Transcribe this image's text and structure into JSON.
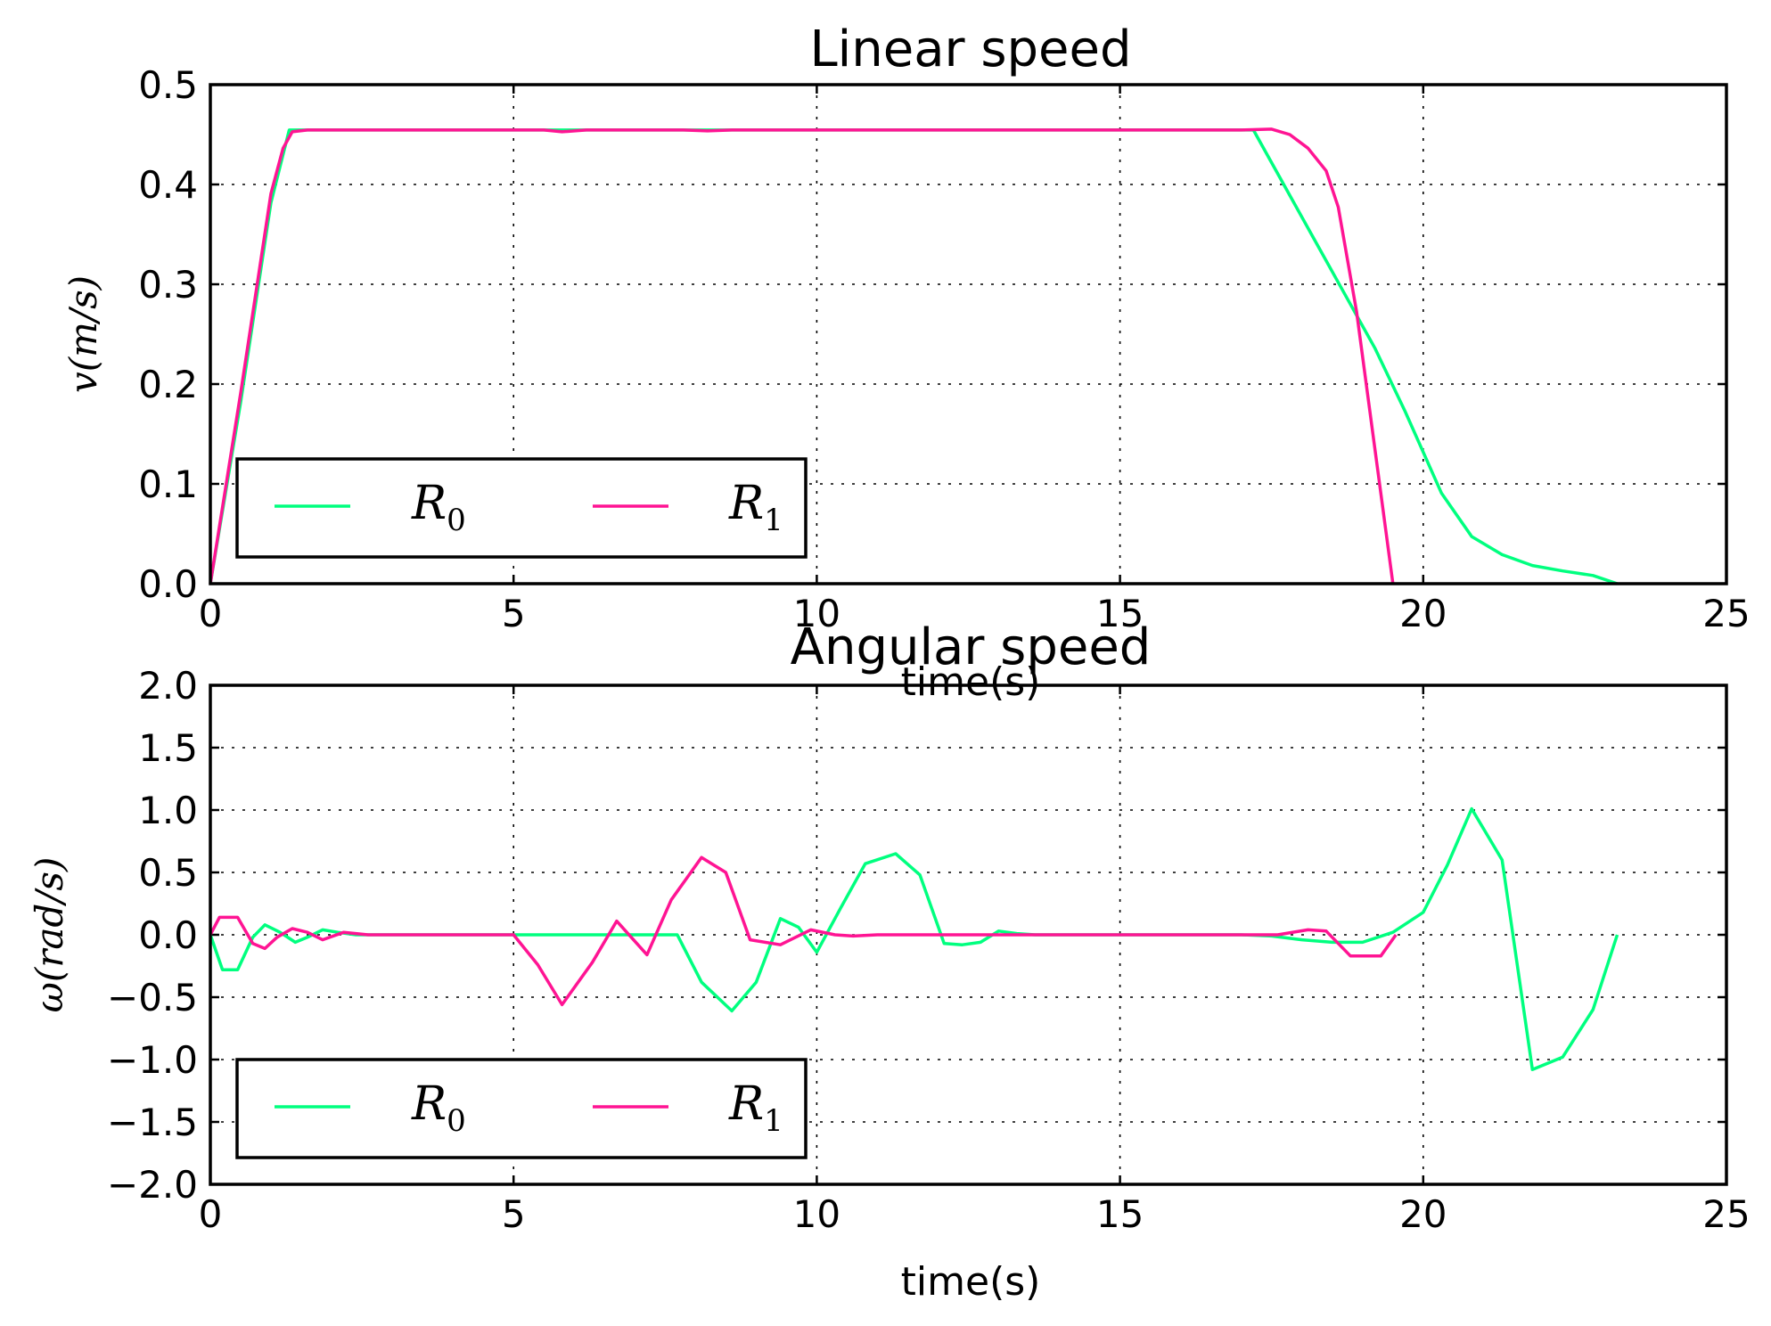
{
  "chart_data": [
    {
      "type": "line",
      "title": "Linear speed",
      "xlabel": "time(s)",
      "ylabel": "v(m/s)",
      "xlim": [
        0,
        25
      ],
      "ylim": [
        0,
        0.55
      ],
      "xticks": [
        "0",
        "5",
        "10",
        "15",
        "20",
        "25"
      ],
      "yticks": [
        "0.0",
        "0.1",
        "0.2",
        "0.3",
        "0.4",
        "0.5"
      ],
      "grid": true,
      "legend_position": "lower-left",
      "series": [
        {
          "name": "R_0",
          "color": "#00ff7f",
          "x": [
            0,
            0.5,
            1.0,
            1.3,
            1.5,
            2,
            3,
            4,
            5,
            6,
            7,
            8,
            9,
            10,
            11,
            12,
            13,
            14,
            15,
            16,
            17.2,
            17.7,
            18.2,
            18.7,
            19.2,
            19.7,
            20.3,
            20.8,
            21.3,
            21.8,
            22.3,
            22.8,
            23.2
          ],
          "y": [
            0,
            0.2,
            0.42,
            0.5,
            0.5,
            0.5,
            0.5,
            0.5,
            0.5,
            0.5,
            0.5,
            0.5,
            0.5,
            0.5,
            0.5,
            0.5,
            0.5,
            0.5,
            0.5,
            0.5,
            0.5,
            0.44,
            0.38,
            0.32,
            0.26,
            0.19,
            0.1,
            0.052,
            0.032,
            0.02,
            0.014,
            0.009,
            0.0
          ]
        },
        {
          "name": "R_1",
          "color": "#ff1493",
          "x": [
            0,
            0.5,
            1.0,
            1.2,
            1.35,
            1.6,
            2,
            3,
            4,
            5,
            5.5,
            5.8,
            6.2,
            7,
            7.8,
            8.2,
            8.6,
            9,
            10,
            11,
            12,
            13,
            14,
            15,
            16,
            17,
            17.5,
            17.8,
            18.1,
            18.4,
            18.6,
            18.9,
            19.2,
            19.5
          ],
          "y": [
            0,
            0.21,
            0.43,
            0.48,
            0.498,
            0.5,
            0.5,
            0.5,
            0.5,
            0.5,
            0.5,
            0.498,
            0.5,
            0.5,
            0.5,
            0.499,
            0.5,
            0.5,
            0.5,
            0.5,
            0.5,
            0.5,
            0.5,
            0.5,
            0.5,
            0.5,
            0.501,
            0.495,
            0.48,
            0.455,
            0.415,
            0.3,
            0.15,
            0.0
          ]
        }
      ]
    },
    {
      "type": "line",
      "title": "Angular speed",
      "xlabel": "time(s)",
      "ylabel": "ω(rad/s)",
      "xlim": [
        0,
        25
      ],
      "ylim": [
        -2.0,
        2.0
      ],
      "xticks": [
        "0",
        "5",
        "10",
        "15",
        "20",
        "25"
      ],
      "yticks": [
        "−2.0",
        "−1.5",
        "−1.0",
        "−0.5",
        "0.0",
        "0.5",
        "1.0",
        "1.5",
        "2.0"
      ],
      "grid": true,
      "legend_position": "lower-left",
      "series": [
        {
          "name": "R_0",
          "color": "#00ff7f",
          "x": [
            0,
            0.2,
            0.45,
            0.7,
            0.9,
            1.15,
            1.4,
            1.6,
            1.85,
            2.1,
            2.4,
            3,
            4,
            5,
            6,
            7,
            7.7,
            8.1,
            8.6,
            9.0,
            9.4,
            9.7,
            10.0,
            10.4,
            10.8,
            11.3,
            11.7,
            12.1,
            12.4,
            12.7,
            13.0,
            13.3,
            13.6,
            14,
            15,
            16,
            17,
            17.5,
            18.0,
            18.5,
            19.0,
            19.5,
            20.0,
            20.4,
            20.8,
            21.3,
            21.8,
            22.3,
            22.8,
            23.2
          ],
          "y": [
            0,
            -0.28,
            -0.28,
            -0.02,
            0.08,
            0.02,
            -0.06,
            -0.02,
            0.04,
            0.02,
            0.0,
            0.0,
            0.0,
            0.0,
            0.0,
            0.0,
            0.0,
            -0.38,
            -0.61,
            -0.38,
            0.13,
            0.06,
            -0.14,
            0.22,
            0.57,
            0.65,
            0.48,
            -0.07,
            -0.08,
            -0.06,
            0.03,
            0.01,
            0.0,
            0.0,
            0.0,
            0.0,
            0.0,
            -0.01,
            -0.04,
            -0.06,
            -0.06,
            0.02,
            0.18,
            0.56,
            1.01,
            0.6,
            -1.08,
            -0.98,
            -0.6,
            0.0
          ]
        },
        {
          "name": "R_1",
          "color": "#ff1493",
          "x": [
            0,
            0.15,
            0.45,
            0.7,
            0.9,
            1.1,
            1.35,
            1.6,
            1.85,
            2.2,
            2.6,
            3,
            4,
            5,
            5.4,
            5.8,
            6.3,
            6.7,
            7.2,
            7.6,
            8.1,
            8.5,
            8.9,
            9.4,
            9.9,
            10.3,
            10.6,
            11,
            12,
            13,
            14,
            15,
            16,
            17,
            17.6,
            18.1,
            18.4,
            18.8,
            19.3,
            19.55
          ],
          "y": [
            0,
            0.14,
            0.14,
            -0.07,
            -0.11,
            -0.02,
            0.05,
            0.02,
            -0.04,
            0.02,
            0.0,
            0.0,
            0.0,
            0.0,
            -0.24,
            -0.56,
            -0.22,
            0.11,
            -0.16,
            0.28,
            0.62,
            0.5,
            -0.04,
            -0.08,
            0.04,
            0.0,
            -0.01,
            0.0,
            0.0,
            0.0,
            0.0,
            0.0,
            0.0,
            0.0,
            0.0,
            0.04,
            0.03,
            -0.17,
            -0.17,
            0.0
          ]
        }
      ]
    }
  ]
}
